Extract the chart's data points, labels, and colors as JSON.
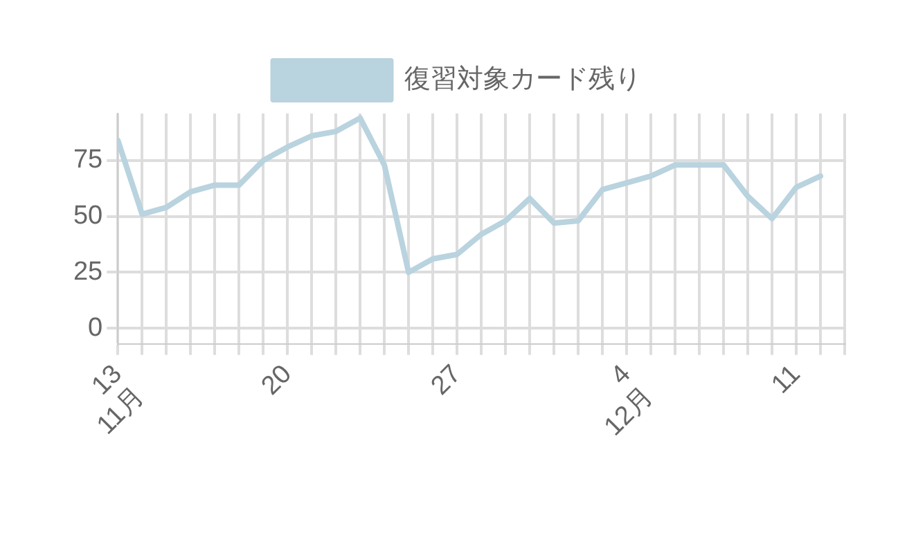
{
  "chart_data": {
    "type": "line",
    "legend": "top",
    "grid": true,
    "marker": "none",
    "line_style": "solid",
    "x": [
      "--11-13",
      "--11-14",
      "--11-15",
      "--11-16",
      "--11-17",
      "--11-18",
      "--11-19",
      "--11-20",
      "--11-21",
      "--11-22",
      "--11-23",
      "--11-24",
      "--11-25",
      "--11-26",
      "--11-27",
      "--11-28",
      "--11-29",
      "--11-30",
      "--12-01",
      "--12-02",
      "--12-03",
      "--12-04",
      "--12-05",
      "--12-06",
      "--12-07",
      "--12-08",
      "--12-09",
      "--12-10",
      "--12-11",
      "--12-12"
    ],
    "series": [
      {
        "name": "復習対象カード残り",
        "color": "#b9d3df",
        "values": [
          84,
          51,
          54,
          61,
          64,
          64,
          75,
          81,
          86,
          88,
          94,
          73,
          25,
          31,
          33,
          42,
          48,
          58,
          47,
          48,
          62,
          65,
          68,
          73,
          73,
          73,
          59,
          49,
          63,
          68
        ]
      }
    ],
    "ylim": [
      -7,
      96
    ],
    "yticks": [
      0,
      25,
      50,
      75
    ],
    "xlim": [
      "--11-13",
      "--12-13"
    ],
    "xticks": [
      {
        "value": "--11-13",
        "label": "13\n11月"
      },
      {
        "value": "--11-14",
        "label": null
      },
      {
        "value": "--11-15",
        "label": null
      },
      {
        "value": "--11-16",
        "label": null
      },
      {
        "value": "--11-17",
        "label": null
      },
      {
        "value": "--11-18",
        "label": null
      },
      {
        "value": "--11-19",
        "label": null
      },
      {
        "value": "--11-20",
        "label": "20"
      },
      {
        "value": "--11-21",
        "label": null
      },
      {
        "value": "--11-22",
        "label": null
      },
      {
        "value": "--11-23",
        "label": null
      },
      {
        "value": "--11-24",
        "label": null
      },
      {
        "value": "--11-25",
        "label": null
      },
      {
        "value": "--11-26",
        "label": null
      },
      {
        "value": "--11-27",
        "label": "27"
      },
      {
        "value": "--11-28",
        "label": null
      },
      {
        "value": "--11-29",
        "label": null
      },
      {
        "value": "--11-30",
        "label": null
      },
      {
        "value": "--12-01",
        "label": null
      },
      {
        "value": "--12-02",
        "label": null
      },
      {
        "value": "--12-03",
        "label": null
      },
      {
        "value": "--12-04",
        "label": "4\n12月"
      },
      {
        "value": "--12-05",
        "label": null
      },
      {
        "value": "--12-06",
        "label": null
      },
      {
        "value": "--12-07",
        "label": null
      },
      {
        "value": "--12-08",
        "label": null
      },
      {
        "value": "--12-09",
        "label": null
      },
      {
        "value": "--12-10",
        "label": null
      },
      {
        "value": "--12-11",
        "label": "11"
      },
      {
        "value": "--12-12",
        "label": null
      },
      {
        "value": "--12-13",
        "label": null
      }
    ]
  }
}
